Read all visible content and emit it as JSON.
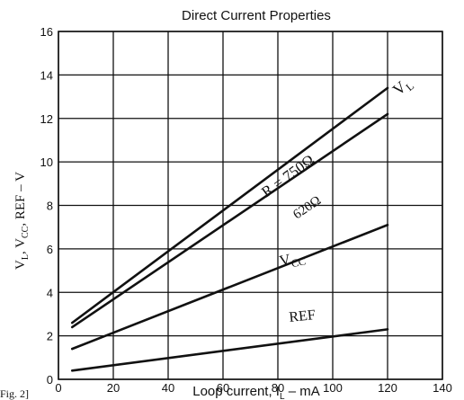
{
  "chart_data": {
    "type": "line",
    "title": "Direct Current Properties",
    "xlabel": "Loop current, I",
    "xlabel_sub": "L",
    "xlabel_unit": " – mA",
    "ylabel_parts": [
      "V",
      "L",
      ", V",
      "CC",
      ", REF  –  V"
    ],
    "xlim": [
      0,
      140
    ],
    "ylim": [
      0,
      16
    ],
    "xticks": [
      0,
      20,
      40,
      60,
      80,
      100,
      120,
      140
    ],
    "yticks": [
      0,
      2,
      4,
      6,
      8,
      10,
      12,
      14,
      16
    ],
    "grid": true,
    "series": [
      {
        "name": "R = 750Ω",
        "x": [
          5,
          120
        ],
        "y": [
          2.6,
          13.4
        ]
      },
      {
        "name": "620Ω",
        "x": [
          5,
          120
        ],
        "y": [
          2.4,
          12.2
        ]
      },
      {
        "name": "VCC",
        "x": [
          5,
          120
        ],
        "y": [
          1.4,
          7.1
        ]
      },
      {
        "name": "REF",
        "x": [
          5,
          120
        ],
        "y": [
          0.4,
          2.3
        ]
      }
    ],
    "annotations": {
      "r750": "R = 750Ω",
      "r620": "620Ω",
      "vl_main": "V",
      "vl_sub": "L",
      "vcc_main": "V",
      "vcc_sub": "CC",
      "ref": "REF"
    },
    "figure_label": "Fig. 2]"
  }
}
